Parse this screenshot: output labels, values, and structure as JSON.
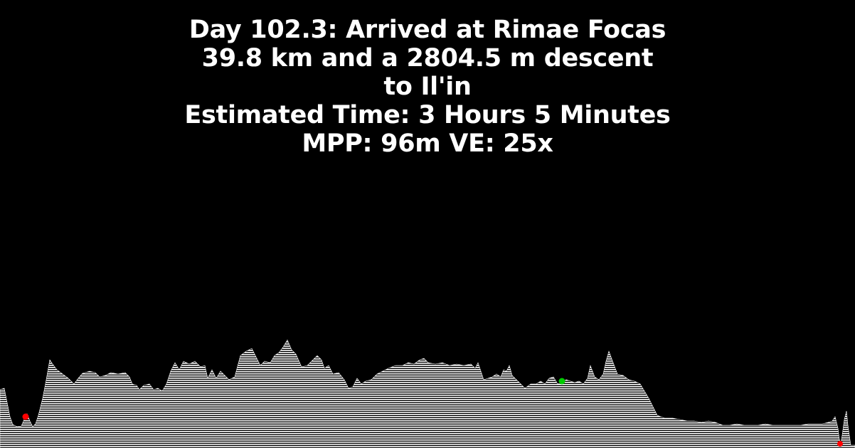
{
  "header": {
    "line1": "Day 102.3: Arrived at Rimae Focas",
    "line2": "39.8 km and a 2804.5 m descent",
    "line3": "to Il'in",
    "line4": "Estimated Time: 3 Hours 5 Minutes",
    "line5": "MPP: 96m VE: 25x"
  },
  "colors": {
    "background": "#000000",
    "text": "#ffffff",
    "terrain": "#ffffff",
    "marker_red": "#ff0000",
    "marker_green": "#00cc00"
  },
  "markers": [
    {
      "name": "start-marker",
      "color": "red"
    },
    {
      "name": "current-position-marker",
      "color": "green"
    },
    {
      "name": "end-marker",
      "color": "red"
    }
  ]
}
